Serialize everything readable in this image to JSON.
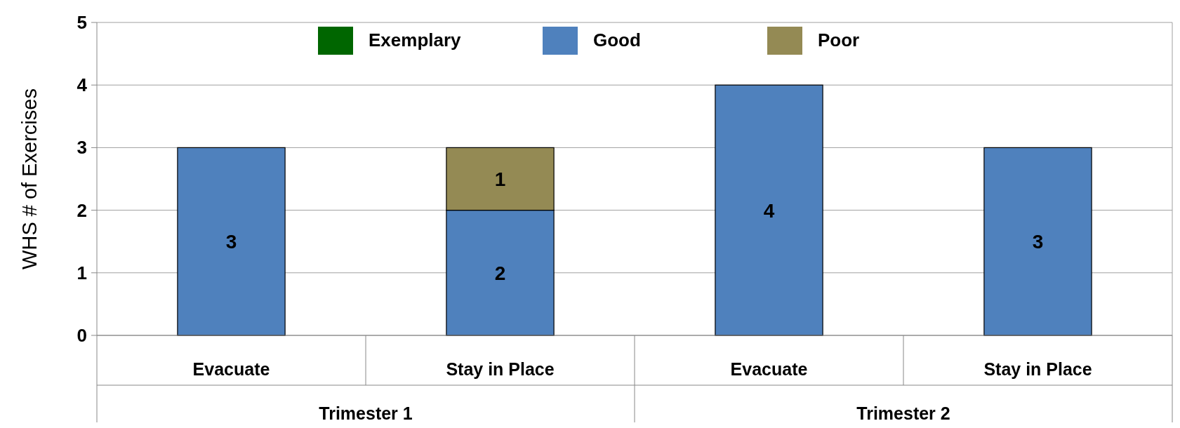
{
  "chart_data": {
    "type": "bar",
    "ylabel": "WHS # of Exercises",
    "categories": [
      "Evacuate",
      "Stay in Place",
      "Evacuate",
      "Stay in Place"
    ],
    "annotations": [
      "Trimester 1",
      "Trimester 2"
    ],
    "series": [
      {
        "name": "Exemplary",
        "color": "#006600",
        "values": [
          null,
          null,
          null,
          null
        ]
      },
      {
        "name": "Good",
        "color": "#4f81bd",
        "values": [
          3,
          2,
          4,
          3
        ]
      },
      {
        "name": "Poor",
        "color": "#948a54",
        "values": [
          null,
          1,
          null,
          null
        ]
      }
    ],
    "stacked": true,
    "ylim": [
      0,
      5
    ],
    "yticks": [
      0,
      1,
      2,
      3,
      4,
      5
    ],
    "grid": "y",
    "legend": "top",
    "data_labels": true
  }
}
